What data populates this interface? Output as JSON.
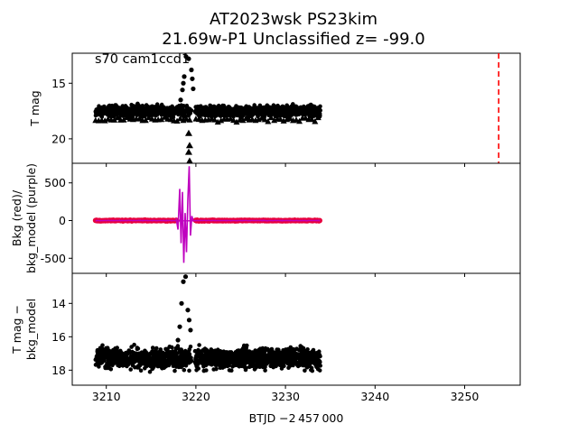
{
  "figure": {
    "title_line1": "AT2023wsk  PS23kim",
    "title_line2": "21.69w-P1 Unclassified z= -99.0",
    "annotation": "s70 cam1ccd1",
    "xlabel": "BTJD −2 457 000"
  },
  "chart_data": [
    {
      "type": "scatter",
      "panel": "top",
      "ylabel": "T mag",
      "xlim": [
        3206.2,
        3256.2
      ],
      "ylim": [
        22.2,
        12.3
      ],
      "y_inverted": true,
      "x_ticks": [
        3210,
        3220,
        3230,
        3240,
        3250
      ],
      "y_ticks": [
        15,
        20
      ],
      "series": [
        {
          "marker": "circle",
          "color": "#000000",
          "x_range": [
            3208.8,
            3233.9
          ],
          "y_typical": 17.5,
          "y_scatter": 0.7,
          "gap": [
            3219.5,
            3219.9
          ]
        },
        {
          "marker": "triangle",
          "color": "#000000",
          "note": "upper limits",
          "x_range": [
            3208.8,
            3233.9
          ],
          "y_typical": 18.3
        }
      ],
      "flare_points": [
        {
          "x": 3218.3,
          "y": 16.5
        },
        {
          "x": 3218.5,
          "y": 15.6
        },
        {
          "x": 3218.6,
          "y": 15.0
        },
        {
          "x": 3218.7,
          "y": 14.4
        },
        {
          "x": 3218.9,
          "y": 12.6
        },
        {
          "x": 3219.2,
          "y": 12.8
        },
        {
          "x": 3219.5,
          "y": 13.8
        },
        {
          "x": 3219.6,
          "y": 14.6
        },
        {
          "x": 3219.7,
          "y": 15.5
        }
      ],
      "flare_limits": [
        {
          "x": 3219.2,
          "y": 19.5
        },
        {
          "x": 3219.3,
          "y": 20.6
        },
        {
          "x": 3219.2,
          "y": 21.2
        },
        {
          "x": 3219.3,
          "y": 22.0
        }
      ],
      "vline": {
        "x": 3253.8,
        "color": "#ff0000",
        "style": "dashed"
      }
    },
    {
      "type": "line",
      "panel": "middle",
      "ylabel": "Bkg (red)/\nbkg_model (purple)",
      "xlim": [
        3206.2,
        3256.2
      ],
      "ylim": [
        -700,
        760
      ],
      "y_ticks": [
        500,
        0,
        -500
      ],
      "series": [
        {
          "name": "Bkg",
          "color": "#e8003c",
          "x_range": [
            3208.8,
            3233.9
          ],
          "y_typical": 0
        },
        {
          "name": "bkg_model",
          "color": "#bf00bf",
          "x_range": [
            3208.8,
            3233.9
          ],
          "y_typical": 0
        }
      ],
      "spike": [
        {
          "x": 3217.8,
          "y": 30
        },
        {
          "x": 3218.0,
          "y": -120
        },
        {
          "x": 3218.2,
          "y": 420
        },
        {
          "x": 3218.35,
          "y": -300
        },
        {
          "x": 3218.5,
          "y": 380
        },
        {
          "x": 3218.65,
          "y": -560
        },
        {
          "x": 3218.8,
          "y": 100
        },
        {
          "x": 3218.95,
          "y": -420
        },
        {
          "x": 3219.1,
          "y": 280
        },
        {
          "x": 3219.25,
          "y": 720
        },
        {
          "x": 3219.4,
          "y": -200
        },
        {
          "x": 3219.55,
          "y": 60
        },
        {
          "x": 3219.7,
          "y": 0
        }
      ]
    },
    {
      "type": "scatter",
      "panel": "bottom",
      "ylabel": "T mag −\nbkg_model",
      "xlim": [
        3206.2,
        3256.2
      ],
      "ylim": [
        18.9,
        12.2
      ],
      "y_inverted": true,
      "y_ticks": [
        14,
        16,
        18
      ],
      "series": [
        {
          "marker": "circle",
          "color": "#000000",
          "x_range": [
            3208.8,
            3233.9
          ],
          "y_typical": 17.3,
          "y_scatter": 0.9,
          "gap": [
            3219.5,
            3219.9
          ]
        }
      ],
      "flare_points": [
        {
          "x": 3217.8,
          "y": 16.7
        },
        {
          "x": 3218.0,
          "y": 16.2
        },
        {
          "x": 3218.2,
          "y": 15.4
        },
        {
          "x": 3218.4,
          "y": 14.0
        },
        {
          "x": 3218.6,
          "y": 12.7
        },
        {
          "x": 3218.85,
          "y": 12.4
        },
        {
          "x": 3219.1,
          "y": 14.4
        },
        {
          "x": 3219.25,
          "y": 15.0
        },
        {
          "x": 3219.4,
          "y": 15.6
        }
      ]
    }
  ]
}
